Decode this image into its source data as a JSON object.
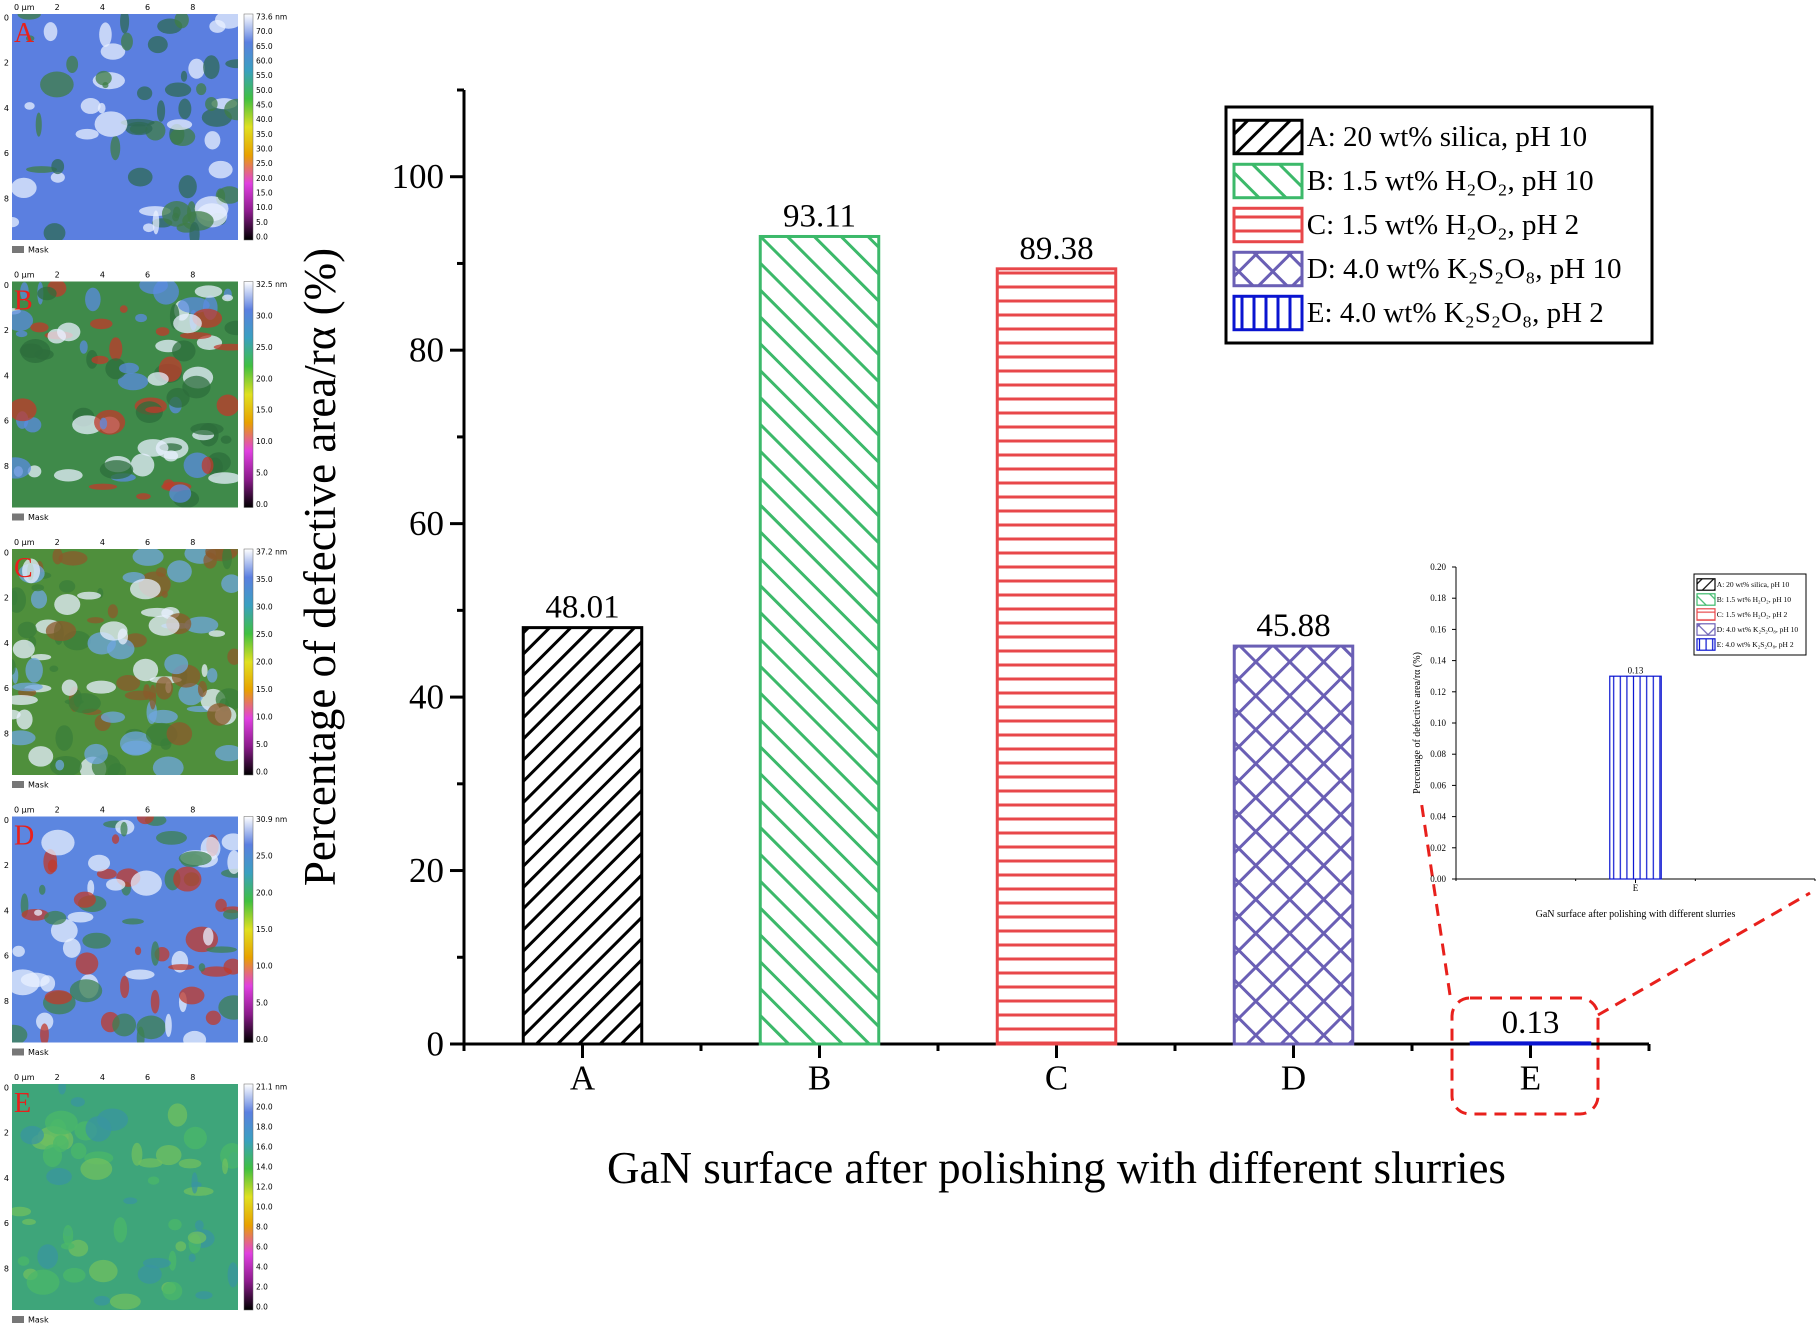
{
  "chart_data": [
    {
      "type": "bar",
      "xlabel": "GaN surface after polishing with different slurries",
      "ylabel": "Percentage of defective area/rα (%)",
      "categories": [
        "A",
        "B",
        "C",
        "D",
        "E"
      ],
      "values": [
        48.01,
        93.11,
        89.38,
        45.88,
        0.13
      ],
      "colors": [
        "#000000",
        "#3cb96a",
        "#e8474a",
        "#6a5fb5",
        "#0a14d0"
      ],
      "patterns": [
        "forward-diagonal",
        "back-diagonal",
        "horizontal",
        "cross",
        "vertical"
      ],
      "legend": [
        "A: 20 wt% silica, pH 10",
        "B: 1.5 wt% H₂O₂, pH 10",
        "C: 1.5 wt% H₂O₂, pH 2",
        "D: 4.0 wt% K₂S₂O₈, pH 10",
        "E: 4.0 wt% K₂S₂O₈, pH 2"
      ],
      "legend_position": "upper right",
      "ylim": [
        0,
        110
      ],
      "yticks": [
        0,
        20,
        40,
        60,
        80,
        100
      ],
      "yminorticks": [
        10,
        30,
        50,
        70,
        90,
        110
      ]
    },
    {
      "type": "bar",
      "xlabel": "GaN surface after polishing with different slurries",
      "ylabel": "Percentage of defective area/rα (%)",
      "categories": [
        "E"
      ],
      "values": [
        0.13
      ],
      "colors": [
        "#0a14d0"
      ],
      "patterns": [
        "vertical"
      ],
      "legend": [
        "A: 20 wt% silica, pH 10",
        "B: 1.5 wt% H₂O₂, pH 10",
        "C: 1.5 wt% H₂O₂, pH 2",
        "D: 4.0 wt% K₂S₂O₈, pH 10",
        "E: 4.0 wt% K₂S₂O₈, pH 2"
      ],
      "legend_colors": [
        "#000000",
        "#3cb96a",
        "#e8474a",
        "#6a5fb5",
        "#0a14d0"
      ],
      "legend_patterns": [
        "forward-diagonal",
        "back-diagonal",
        "horizontal",
        "cross",
        "vertical"
      ],
      "legend_position": "upper right",
      "ylim": [
        0,
        0.2
      ],
      "yticks": [
        {
          "value": 0,
          "label": "0.00"
        },
        {
          "value": 0.02,
          "label": "0.02"
        },
        {
          "value": 0.04,
          "label": "0.04"
        },
        {
          "value": 0.06,
          "label": "0.06"
        },
        {
          "value": 0.08,
          "label": "0.08"
        },
        {
          "value": 0.1,
          "label": "0.10"
        },
        {
          "value": 0.12,
          "label": "0.12"
        },
        {
          "value": 0.14,
          "label": "0.14"
        },
        {
          "value": 0.16,
          "label": "0.16"
        },
        {
          "value": 0.18,
          "label": "0.18"
        },
        {
          "value": 0.2,
          "label": "0.20"
        }
      ]
    }
  ],
  "afm_panels": {
    "x_axis": [
      "0 µm",
      "2",
      "4",
      "6",
      "8"
    ],
    "y_axis": [
      "0",
      "2",
      "4",
      "6",
      "8"
    ],
    "mask_label": "Mask",
    "panels": [
      {
        "label": "A",
        "scale": [
          "73.6 nm",
          "70.0",
          "65.0",
          "60.0",
          "55.0",
          "50.0",
          "45.0",
          "40.0",
          "35.0",
          "30.0",
          "25.0",
          "20.0",
          "15.0",
          "10.0",
          "5.0",
          "0.0"
        ]
      },
      {
        "label": "B",
        "scale": [
          "32.5 nm",
          "30.0",
          "25.0",
          "20.0",
          "15.0",
          "10.0",
          "5.0",
          "0.0"
        ]
      },
      {
        "label": "C",
        "scale": [
          "37.2 nm",
          "35.0",
          "30.0",
          "25.0",
          "20.0",
          "15.0",
          "10.0",
          "5.0",
          "0.0"
        ]
      },
      {
        "label": "D",
        "scale": [
          "30.9 nm",
          "25.0",
          "20.0",
          "15.0",
          "10.0",
          "5.0",
          "0.0"
        ]
      },
      {
        "label": "E",
        "scale": [
          "21.1 nm",
          "20.0",
          "18.0",
          "16.0",
          "14.0",
          "12.0",
          "10.0",
          "8.0",
          "6.0",
          "4.0",
          "2.0",
          "0.0"
        ]
      }
    ]
  }
}
